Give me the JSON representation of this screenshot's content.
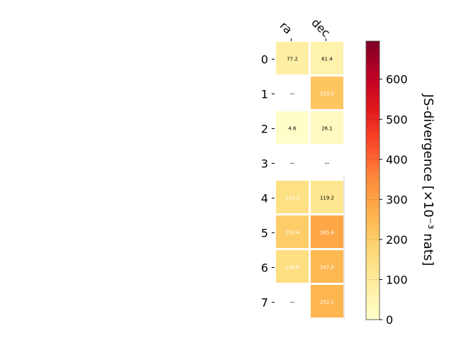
{
  "chart_data": {
    "type": "heatmap",
    "columns": [
      "ra",
      "dec"
    ],
    "rows": [
      "0",
      "1",
      "2",
      "3",
      "4",
      "5",
      "6",
      "7"
    ],
    "values": [
      [
        77.2,
        61.4
      ],
      [
        null,
        219.0
      ],
      [
        4.6,
        26.1
      ],
      [
        null,
        null
      ],
      [
        143.3,
        119.2
      ],
      [
        200.4,
        285.6
      ],
      [
        148.6,
        247.8
      ],
      [
        null,
        252.1
      ]
    ],
    "cell_labels": [
      [
        "77.2",
        "61.4"
      ],
      [
        "--",
        "219.0"
      ],
      [
        "4.6",
        "26.1"
      ],
      [
        "--",
        "--"
      ],
      [
        "143.3",
        "119.2"
      ],
      [
        "200.4",
        "285.6"
      ],
      [
        "148.6",
        "247.8"
      ],
      [
        "--",
        "252.1"
      ]
    ],
    "colorbar": {
      "label": "JS-divergence [×10⁻³ nats]",
      "range": [
        0,
        695
      ],
      "ticks": [
        "0",
        "100",
        "200",
        "300",
        "400",
        "500",
        "600"
      ],
      "tick_values": [
        0,
        100,
        200,
        300,
        400,
        500,
        600
      ],
      "colormap": "YlOrRd"
    },
    "missing_marker": "--"
  }
}
